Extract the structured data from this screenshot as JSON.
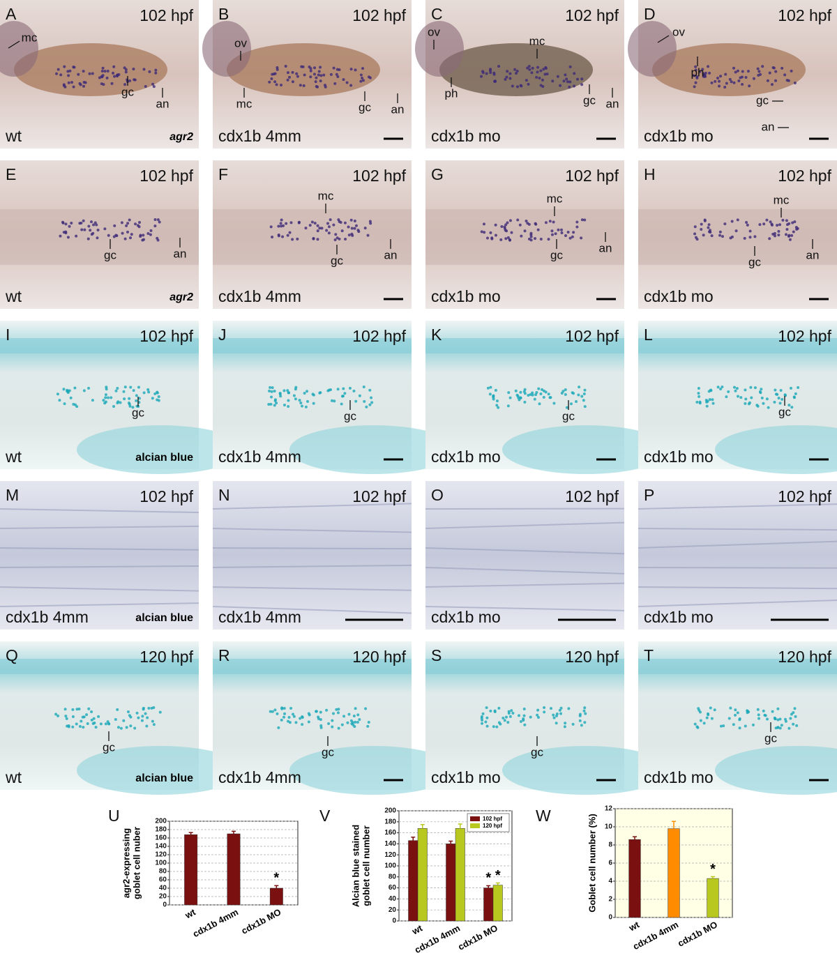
{
  "panels": [
    {
      "letter": "A",
      "stage": "102 hpf",
      "condition": "wt",
      "stain": "agr2",
      "annotations": [
        "mc",
        "gc",
        "an"
      ]
    },
    {
      "letter": "B",
      "stage": "102 hpf",
      "condition": "cdx1b 4mm",
      "annotations": [
        "ov",
        "mc",
        "gc",
        "an"
      ]
    },
    {
      "letter": "C",
      "stage": "102 hpf",
      "condition": "cdx1b mo",
      "annotations": [
        "ov",
        "mc",
        "ph",
        "gc",
        "an"
      ]
    },
    {
      "letter": "D",
      "stage": "102 hpf",
      "condition": "cdx1b mo",
      "annotations": [
        "ov",
        "ph",
        "gc",
        "an"
      ]
    },
    {
      "letter": "E",
      "stage": "102 hpf",
      "condition": "wt",
      "stain": "agr2",
      "annotations": [
        "gc",
        "an"
      ]
    },
    {
      "letter": "F",
      "stage": "102 hpf",
      "condition": "cdx1b 4mm",
      "annotations": [
        "mc",
        "gc",
        "an"
      ]
    },
    {
      "letter": "G",
      "stage": "102 hpf",
      "condition": "cdx1b mo",
      "annotations": [
        "mc",
        "gc",
        "an"
      ]
    },
    {
      "letter": "H",
      "stage": "102 hpf",
      "condition": "cdx1b mo",
      "annotations": [
        "mc",
        "gc",
        "an"
      ]
    },
    {
      "letter": "I",
      "stage": "102 hpf",
      "condition": "wt",
      "stain": "alcian blue",
      "annotations": [
        "gc"
      ]
    },
    {
      "letter": "J",
      "stage": "102 hpf",
      "condition": "cdx1b 4mm",
      "annotations": [
        "gc"
      ]
    },
    {
      "letter": "K",
      "stage": "102 hpf",
      "condition": "cdx1b mo",
      "annotations": [
        "gc"
      ]
    },
    {
      "letter": "L",
      "stage": "102 hpf",
      "condition": "cdx1b mo",
      "annotations": [
        "gc"
      ]
    },
    {
      "letter": "M",
      "stage": "102 hpf",
      "condition": "cdx1b 4mm",
      "stain": "alcian blue"
    },
    {
      "letter": "N",
      "stage": "102 hpf",
      "condition": "cdx1b 4mm"
    },
    {
      "letter": "O",
      "stage": "102 hpf",
      "condition": "cdx1b mo"
    },
    {
      "letter": "P",
      "stage": "102 hpf",
      "condition": "cdx1b mo"
    },
    {
      "letter": "Q",
      "stage": "120 hpf",
      "condition": "wt",
      "stain": "alcian blue",
      "annotations": [
        "gc"
      ]
    },
    {
      "letter": "R",
      "stage": "120 hpf",
      "condition": "cdx1b 4mm",
      "annotations": [
        "gc"
      ]
    },
    {
      "letter": "S",
      "stage": "120 hpf",
      "condition": "cdx1b mo",
      "annotations": [
        "gc"
      ]
    },
    {
      "letter": "T",
      "stage": "120 hpf",
      "condition": "cdx1b mo",
      "annotations": [
        "gc"
      ]
    }
  ],
  "chart_data": [
    {
      "type": "bar",
      "letter": "U",
      "ylabel": [
        "agr2-expressing",
        "goblet cell nuber"
      ],
      "categories": [
        "wt",
        "cdx1b 4mm",
        "cdx1b MO"
      ],
      "series": [
        {
          "color": "#7b1010",
          "values": [
            168,
            170,
            40
          ],
          "errors": [
            5,
            6,
            6
          ]
        }
      ],
      "ylim": [
        0,
        200
      ],
      "yticks": [
        0,
        20,
        40,
        60,
        80,
        100,
        120,
        140,
        160,
        180,
        200
      ],
      "grid": true,
      "background": "#ffffff",
      "annotations": [
        {
          "text": "*",
          "series": 0,
          "index": 2
        }
      ]
    },
    {
      "type": "bar",
      "letter": "V",
      "ylabel": [
        "Alcian blue stained",
        "goblet cell number"
      ],
      "categories": [
        "wt",
        "cdx1b 4mm",
        "cdx1b MO"
      ],
      "series": [
        {
          "name": "102 hpf",
          "color": "#7b1010",
          "values": [
            146,
            140,
            60
          ],
          "errors": [
            6,
            5,
            4
          ]
        },
        {
          "name": "120 hpf",
          "color": "#b8c81e",
          "values": [
            168,
            168,
            65
          ],
          "errors": [
            7,
            8,
            4
          ]
        }
      ],
      "ylim": [
        0,
        200
      ],
      "yticks": [
        0,
        20,
        40,
        60,
        80,
        100,
        120,
        140,
        160,
        180,
        200
      ],
      "grid": true,
      "background": "#ffffff",
      "legend": "top-right",
      "annotations": [
        {
          "text": "*",
          "series": 0,
          "index": 2
        },
        {
          "text": "*",
          "series": 1,
          "index": 2
        }
      ]
    },
    {
      "type": "bar",
      "letter": "W",
      "ylabel": [
        "Goblet cell number (%)"
      ],
      "categories": [
        "wt",
        "cdx1b 4mm",
        "cdx1b MO"
      ],
      "series": [
        {
          "colors": [
            "#7b1010",
            "#ff8c00",
            "#b8c81e"
          ],
          "values": [
            8.6,
            9.8,
            4.3
          ],
          "errors": [
            0.3,
            0.8,
            0.2
          ]
        }
      ],
      "ylim": [
        0,
        12
      ],
      "yticks": [
        0,
        2,
        4,
        6,
        8,
        10,
        12
      ],
      "grid": true,
      "background": "#ffffe6",
      "annotations": [
        {
          "text": "*",
          "series": 0,
          "index": 2
        }
      ]
    }
  ]
}
